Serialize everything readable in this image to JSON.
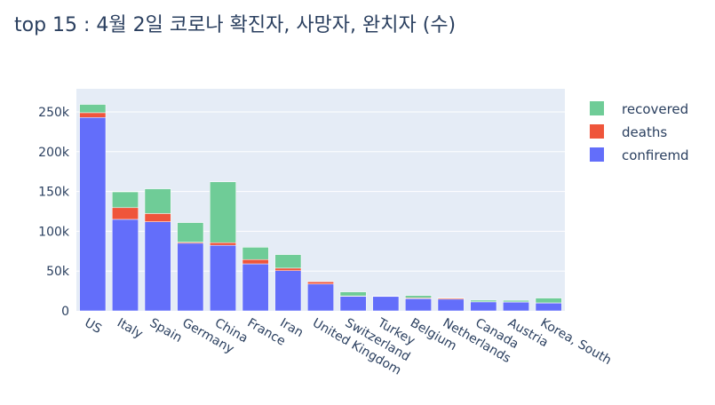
{
  "chart_data": {
    "type": "bar",
    "barmode": "stack",
    "title": "top 15 : 4월 2일 코로나 확진자, 사망자, 완치자 (수)",
    "xlabel": "",
    "ylabel": "",
    "ylim": [
      0,
      270000
    ],
    "yticks": [
      0,
      50000,
      100000,
      150000,
      200000,
      250000
    ],
    "ytick_labels": [
      "0",
      "50k",
      "100k",
      "150k",
      "200k",
      "250k"
    ],
    "grid": true,
    "legend_position": "top-right",
    "categories": [
      "US",
      "Italy",
      "Spain",
      "Germany",
      "China",
      "France",
      "Iran",
      "United Kingdom",
      "Switzerland",
      "Turkey",
      "Belgium",
      "Netherlands",
      "Canada",
      "Austria",
      "Korea, South"
    ],
    "series": [
      {
        "name": "confiremd",
        "color": "#636efa",
        "values": [
          243000,
          115000,
          112000,
          85000,
          82400,
          59100,
          50500,
          33700,
          18300,
          18100,
          15300,
          14700,
          11300,
          11100,
          9900
        ]
      },
      {
        "name": "deaths",
        "color": "#ef553b",
        "values": [
          6000,
          14700,
          10300,
          1300,
          3300,
          5400,
          3200,
          2900,
          500,
          400,
          1000,
          1300,
          130,
          160,
          170
        ]
      },
      {
        "name": "recovered",
        "color": "#6fcc97",
        "values": [
          10400,
          19800,
          31000,
          24600,
          76400,
          15400,
          17000,
          170,
          5000,
          200,
          2900,
          250,
          2000,
          2000,
          6000
        ]
      }
    ]
  }
}
